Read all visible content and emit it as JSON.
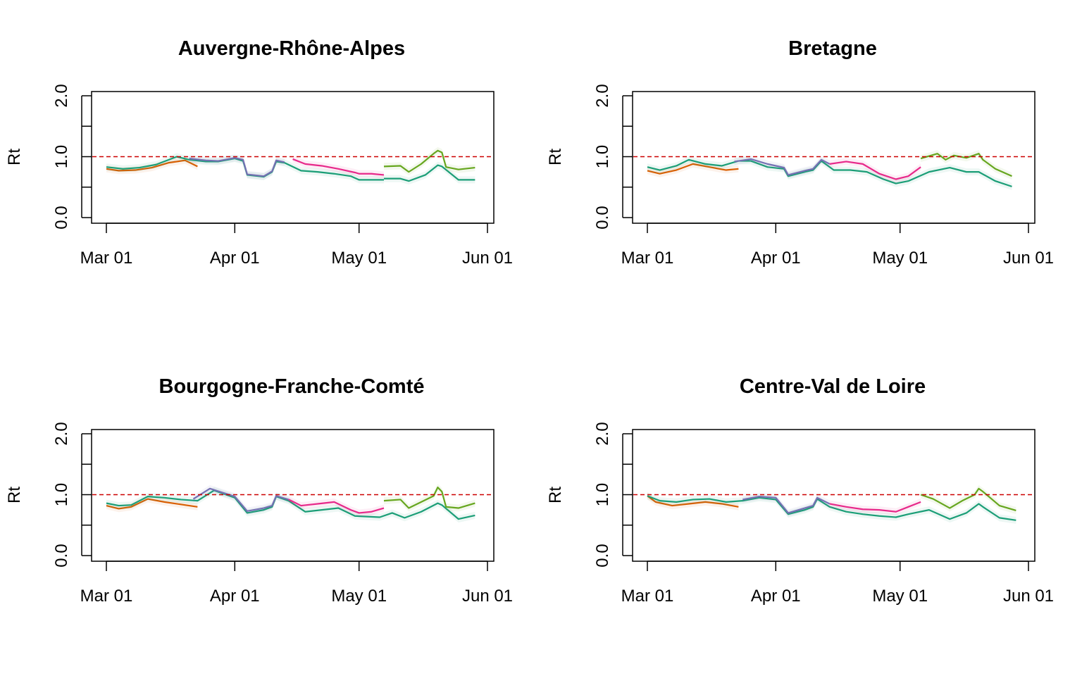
{
  "chart_data": [
    {
      "type": "line",
      "title": "Auvergne-Rhône-Alpes",
      "ylabel": "Rt",
      "xlabel": "",
      "ylim": [
        0,
        2
      ],
      "yticks": [
        "0.0",
        "1.0",
        "2.0"
      ],
      "xticks": [
        "Mar 01",
        "Apr 01",
        "May 01",
        "Jun 01"
      ],
      "reference_line": {
        "value": 1.0,
        "color": "#cc0000",
        "style": "dashed"
      },
      "series": [
        {
          "color": "#d95f02",
          "x": [
            "Mar 01",
            "Mar 04",
            "Mar 08",
            "Mar 12",
            "Mar 16",
            "Mar 20",
            "Mar 23"
          ],
          "y": [
            0.8,
            0.77,
            0.78,
            0.82,
            0.9,
            0.94,
            0.84
          ]
        },
        {
          "color": "#1b9e77",
          "x": [
            "Mar 01",
            "Mar 05",
            "Mar 09",
            "Mar 13",
            "Mar 18",
            "Mar 21",
            "Mar 25",
            "Mar 28",
            "Apr 01",
            "Apr 03",
            "Apr 04",
            "Apr 08",
            "Apr 10",
            "Apr 11",
            "Apr 13",
            "Apr 17",
            "Apr 21",
            "Apr 25",
            "Apr 29",
            "May 01",
            "May 07"
          ],
          "y": [
            0.83,
            0.8,
            0.82,
            0.87,
            1.0,
            0.95,
            0.92,
            0.92,
            0.97,
            0.93,
            0.7,
            0.67,
            0.75,
            0.92,
            0.9,
            0.77,
            0.75,
            0.72,
            0.68,
            0.62,
            0.62
          ]
        },
        {
          "color": "#7570b3",
          "x": [
            "Mar 21",
            "Mar 25",
            "Mar 28",
            "Apr 01",
            "Apr 03",
            "Apr 04",
            "Apr 08",
            "Apr 10",
            "Apr 11",
            "Apr 13"
          ],
          "y": [
            0.97,
            0.94,
            0.93,
            0.98,
            0.95,
            0.71,
            0.68,
            0.76,
            0.94,
            0.91
          ]
        },
        {
          "color": "#e7298a",
          "x": [
            "Apr 15",
            "Apr 18",
            "Apr 22",
            "Apr 26",
            "Apr 30",
            "May 01",
            "May 04",
            "May 07"
          ],
          "y": [
            0.96,
            0.88,
            0.85,
            0.8,
            0.74,
            0.72,
            0.72,
            0.7
          ]
        },
        {
          "color": "#1b9e77",
          "x": [
            "May 07",
            "May 11",
            "May 13",
            "May 17",
            "May 20",
            "May 21",
            "May 25",
            "May 29"
          ],
          "y": [
            0.64,
            0.64,
            0.6,
            0.7,
            0.86,
            0.84,
            0.62,
            0.62
          ]
        },
        {
          "color": "#66a61e",
          "x": [
            "May 07",
            "May 11",
            "May 13",
            "May 16",
            "May 19",
            "May 20",
            "May 21",
            "May 22",
            "May 25",
            "May 29"
          ],
          "y": [
            0.84,
            0.85,
            0.75,
            0.88,
            1.05,
            1.1,
            1.07,
            0.83,
            0.79,
            0.82
          ]
        }
      ]
    },
    {
      "type": "line",
      "title": "Bretagne",
      "ylabel": "Rt",
      "xlabel": "",
      "ylim": [
        0,
        2
      ],
      "yticks": [
        "0.0",
        "1.0",
        "2.0"
      ],
      "xticks": [
        "Mar 01",
        "Apr 01",
        "May 01",
        "Jun 01"
      ],
      "reference_line": {
        "value": 1.0,
        "color": "#cc0000",
        "style": "dashed"
      },
      "series": [
        {
          "color": "#d95f02",
          "x": [
            "Mar 01",
            "Mar 04",
            "Mar 08",
            "Mar 12",
            "Mar 16",
            "Mar 20",
            "Mar 23"
          ],
          "y": [
            0.77,
            0.72,
            0.78,
            0.88,
            0.83,
            0.78,
            0.8
          ]
        },
        {
          "color": "#1b9e77",
          "x": [
            "Mar 01",
            "Mar 04",
            "Mar 08",
            "Mar 11",
            "Mar 15",
            "Mar 19",
            "Mar 23",
            "Mar 26",
            "Mar 30",
            "Apr 03",
            "Apr 04",
            "Apr 08",
            "Apr 10",
            "Apr 12",
            "Apr 15",
            "Apr 19",
            "Apr 23",
            "Apr 27",
            "Apr 30",
            "May 03",
            "May 08",
            "May 13",
            "May 17",
            "May 20",
            "May 24",
            "May 28"
          ],
          "y": [
            0.83,
            0.78,
            0.85,
            0.95,
            0.88,
            0.85,
            0.93,
            0.93,
            0.83,
            0.8,
            0.68,
            0.75,
            0.78,
            0.93,
            0.78,
            0.78,
            0.75,
            0.63,
            0.56,
            0.6,
            0.75,
            0.82,
            0.75,
            0.75,
            0.6,
            0.51
          ]
        },
        {
          "color": "#7570b3",
          "x": [
            "Mar 22",
            "Mar 26",
            "Mar 30",
            "Apr 03",
            "Apr 04",
            "Apr 08",
            "Apr 10",
            "Apr 12",
            "Apr 14"
          ],
          "y": [
            0.92,
            0.96,
            0.88,
            0.82,
            0.7,
            0.77,
            0.8,
            0.95,
            0.88
          ]
        },
        {
          "color": "#e7298a",
          "x": [
            "Apr 14",
            "Apr 18",
            "Apr 22",
            "Apr 26",
            "Apr 30",
            "May 03",
            "May 06"
          ],
          "y": [
            0.88,
            0.92,
            0.88,
            0.72,
            0.63,
            0.68,
            0.83
          ]
        },
        {
          "color": "#66a61e",
          "x": [
            "May 06",
            "May 10",
            "May 12",
            "May 14",
            "May 17",
            "May 20",
            "May 21",
            "May 24",
            "May 28"
          ],
          "y": [
            0.97,
            1.05,
            0.95,
            1.02,
            0.98,
            1.05,
            0.95,
            0.8,
            0.68
          ]
        }
      ]
    },
    {
      "type": "line",
      "title": "Bourgogne-Franche-Comté",
      "ylabel": "Rt",
      "xlabel": "",
      "ylim": [
        0,
        2
      ],
      "yticks": [
        "0.0",
        "1.0",
        "2.0"
      ],
      "xticks": [
        "Mar 01",
        "Apr 01",
        "May 01",
        "Jun 01"
      ],
      "reference_line": {
        "value": 1.0,
        "color": "#cc0000",
        "style": "dashed"
      },
      "series": [
        {
          "color": "#d95f02",
          "x": [
            "Mar 01",
            "Mar 04",
            "Mar 07",
            "Mar 11",
            "Mar 15",
            "Mar 19",
            "Mar 23"
          ],
          "y": [
            0.82,
            0.77,
            0.8,
            0.93,
            0.88,
            0.84,
            0.8
          ]
        },
        {
          "color": "#1b9e77",
          "x": [
            "Mar 01",
            "Mar 04",
            "Mar 07",
            "Mar 11",
            "Mar 15",
            "Mar 19",
            "Mar 23",
            "Mar 27",
            "Apr 01",
            "Apr 04",
            "Apr 08",
            "Apr 10",
            "Apr 11",
            "Apr 14",
            "Apr 18",
            "Apr 22",
            "Apr 26",
            "Apr 30",
            "May 06",
            "May 09",
            "May 12",
            "May 16",
            "May 20",
            "May 21",
            "May 25",
            "May 29"
          ],
          "y": [
            0.86,
            0.82,
            0.83,
            0.97,
            0.95,
            0.92,
            0.9,
            1.07,
            0.95,
            0.7,
            0.75,
            0.8,
            0.97,
            0.9,
            0.72,
            0.75,
            0.78,
            0.65,
            0.63,
            0.7,
            0.62,
            0.72,
            0.86,
            0.83,
            0.6,
            0.66
          ]
        },
        {
          "color": "#7570b3",
          "x": [
            "Mar 22",
            "Mar 26",
            "Apr 01",
            "Apr 04",
            "Apr 08",
            "Apr 10",
            "Apr 11",
            "Apr 14"
          ],
          "y": [
            0.93,
            1.1,
            0.97,
            0.73,
            0.78,
            0.82,
            0.98,
            0.92
          ]
        },
        {
          "color": "#e7298a",
          "x": [
            "Apr 14",
            "Apr 17",
            "Apr 21",
            "Apr 25",
            "Apr 29",
            "May 01",
            "May 04",
            "May 07"
          ],
          "y": [
            0.92,
            0.82,
            0.85,
            0.88,
            0.75,
            0.7,
            0.72,
            0.78
          ]
        },
        {
          "color": "#66a61e",
          "x": [
            "May 07",
            "May 11",
            "May 13",
            "May 16",
            "May 19",
            "May 20",
            "May 21",
            "May 22",
            "May 25",
            "May 29"
          ],
          "y": [
            0.9,
            0.92,
            0.78,
            0.88,
            0.98,
            1.12,
            1.05,
            0.8,
            0.78,
            0.86
          ]
        }
      ]
    },
    {
      "type": "line",
      "title": "Centre-Val de Loire",
      "ylabel": "Rt",
      "xlabel": "",
      "ylim": [
        0,
        2
      ],
      "yticks": [
        "0.0",
        "1.0",
        "2.0"
      ],
      "xticks": [
        "Mar 01",
        "Apr 01",
        "May 01",
        "Jun 01"
      ],
      "reference_line": {
        "value": 1.0,
        "color": "#cc0000",
        "style": "dashed"
      },
      "series": [
        {
          "color": "#d95f02",
          "x": [
            "Mar 01",
            "Mar 03",
            "Mar 07",
            "Mar 11",
            "Mar 15",
            "Mar 19",
            "Mar 23"
          ],
          "y": [
            0.98,
            0.88,
            0.82,
            0.85,
            0.88,
            0.85,
            0.8
          ]
        },
        {
          "color": "#1b9e77",
          "x": [
            "Mar 01",
            "Mar 04",
            "Mar 08",
            "Mar 12",
            "Mar 16",
            "Mar 20",
            "Mar 24",
            "Mar 28",
            "Apr 01",
            "Apr 04",
            "Apr 08",
            "Apr 10",
            "Apr 11",
            "Apr 14",
            "Apr 18",
            "Apr 22",
            "Apr 26",
            "Apr 30",
            "May 03",
            "May 08",
            "May 13",
            "May 17",
            "May 20",
            "May 21",
            "May 25",
            "May 29"
          ],
          "y": [
            0.98,
            0.9,
            0.88,
            0.92,
            0.93,
            0.88,
            0.9,
            0.95,
            0.92,
            0.68,
            0.75,
            0.8,
            0.93,
            0.8,
            0.72,
            0.68,
            0.65,
            0.63,
            0.68,
            0.75,
            0.6,
            0.7,
            0.85,
            0.8,
            0.62,
            0.58
          ]
        },
        {
          "color": "#7570b3",
          "x": [
            "Mar 24",
            "Mar 28",
            "Apr 01",
            "Apr 04",
            "Apr 08",
            "Apr 10",
            "Apr 11",
            "Apr 14"
          ],
          "y": [
            0.92,
            0.97,
            0.95,
            0.7,
            0.78,
            0.82,
            0.95,
            0.85
          ]
        },
        {
          "color": "#e7298a",
          "x": [
            "Apr 14",
            "Apr 18",
            "Apr 22",
            "Apr 26",
            "Apr 30",
            "May 03",
            "May 06"
          ],
          "y": [
            0.85,
            0.8,
            0.76,
            0.75,
            0.72,
            0.8,
            0.88
          ]
        },
        {
          "color": "#66a61e",
          "x": [
            "May 06",
            "May 09",
            "May 13",
            "May 16",
            "May 19",
            "May 20",
            "May 21",
            "May 25",
            "May 29"
          ],
          "y": [
            1.0,
            0.93,
            0.78,
            0.9,
            1.0,
            1.1,
            1.05,
            0.82,
            0.74
          ]
        }
      ]
    }
  ]
}
